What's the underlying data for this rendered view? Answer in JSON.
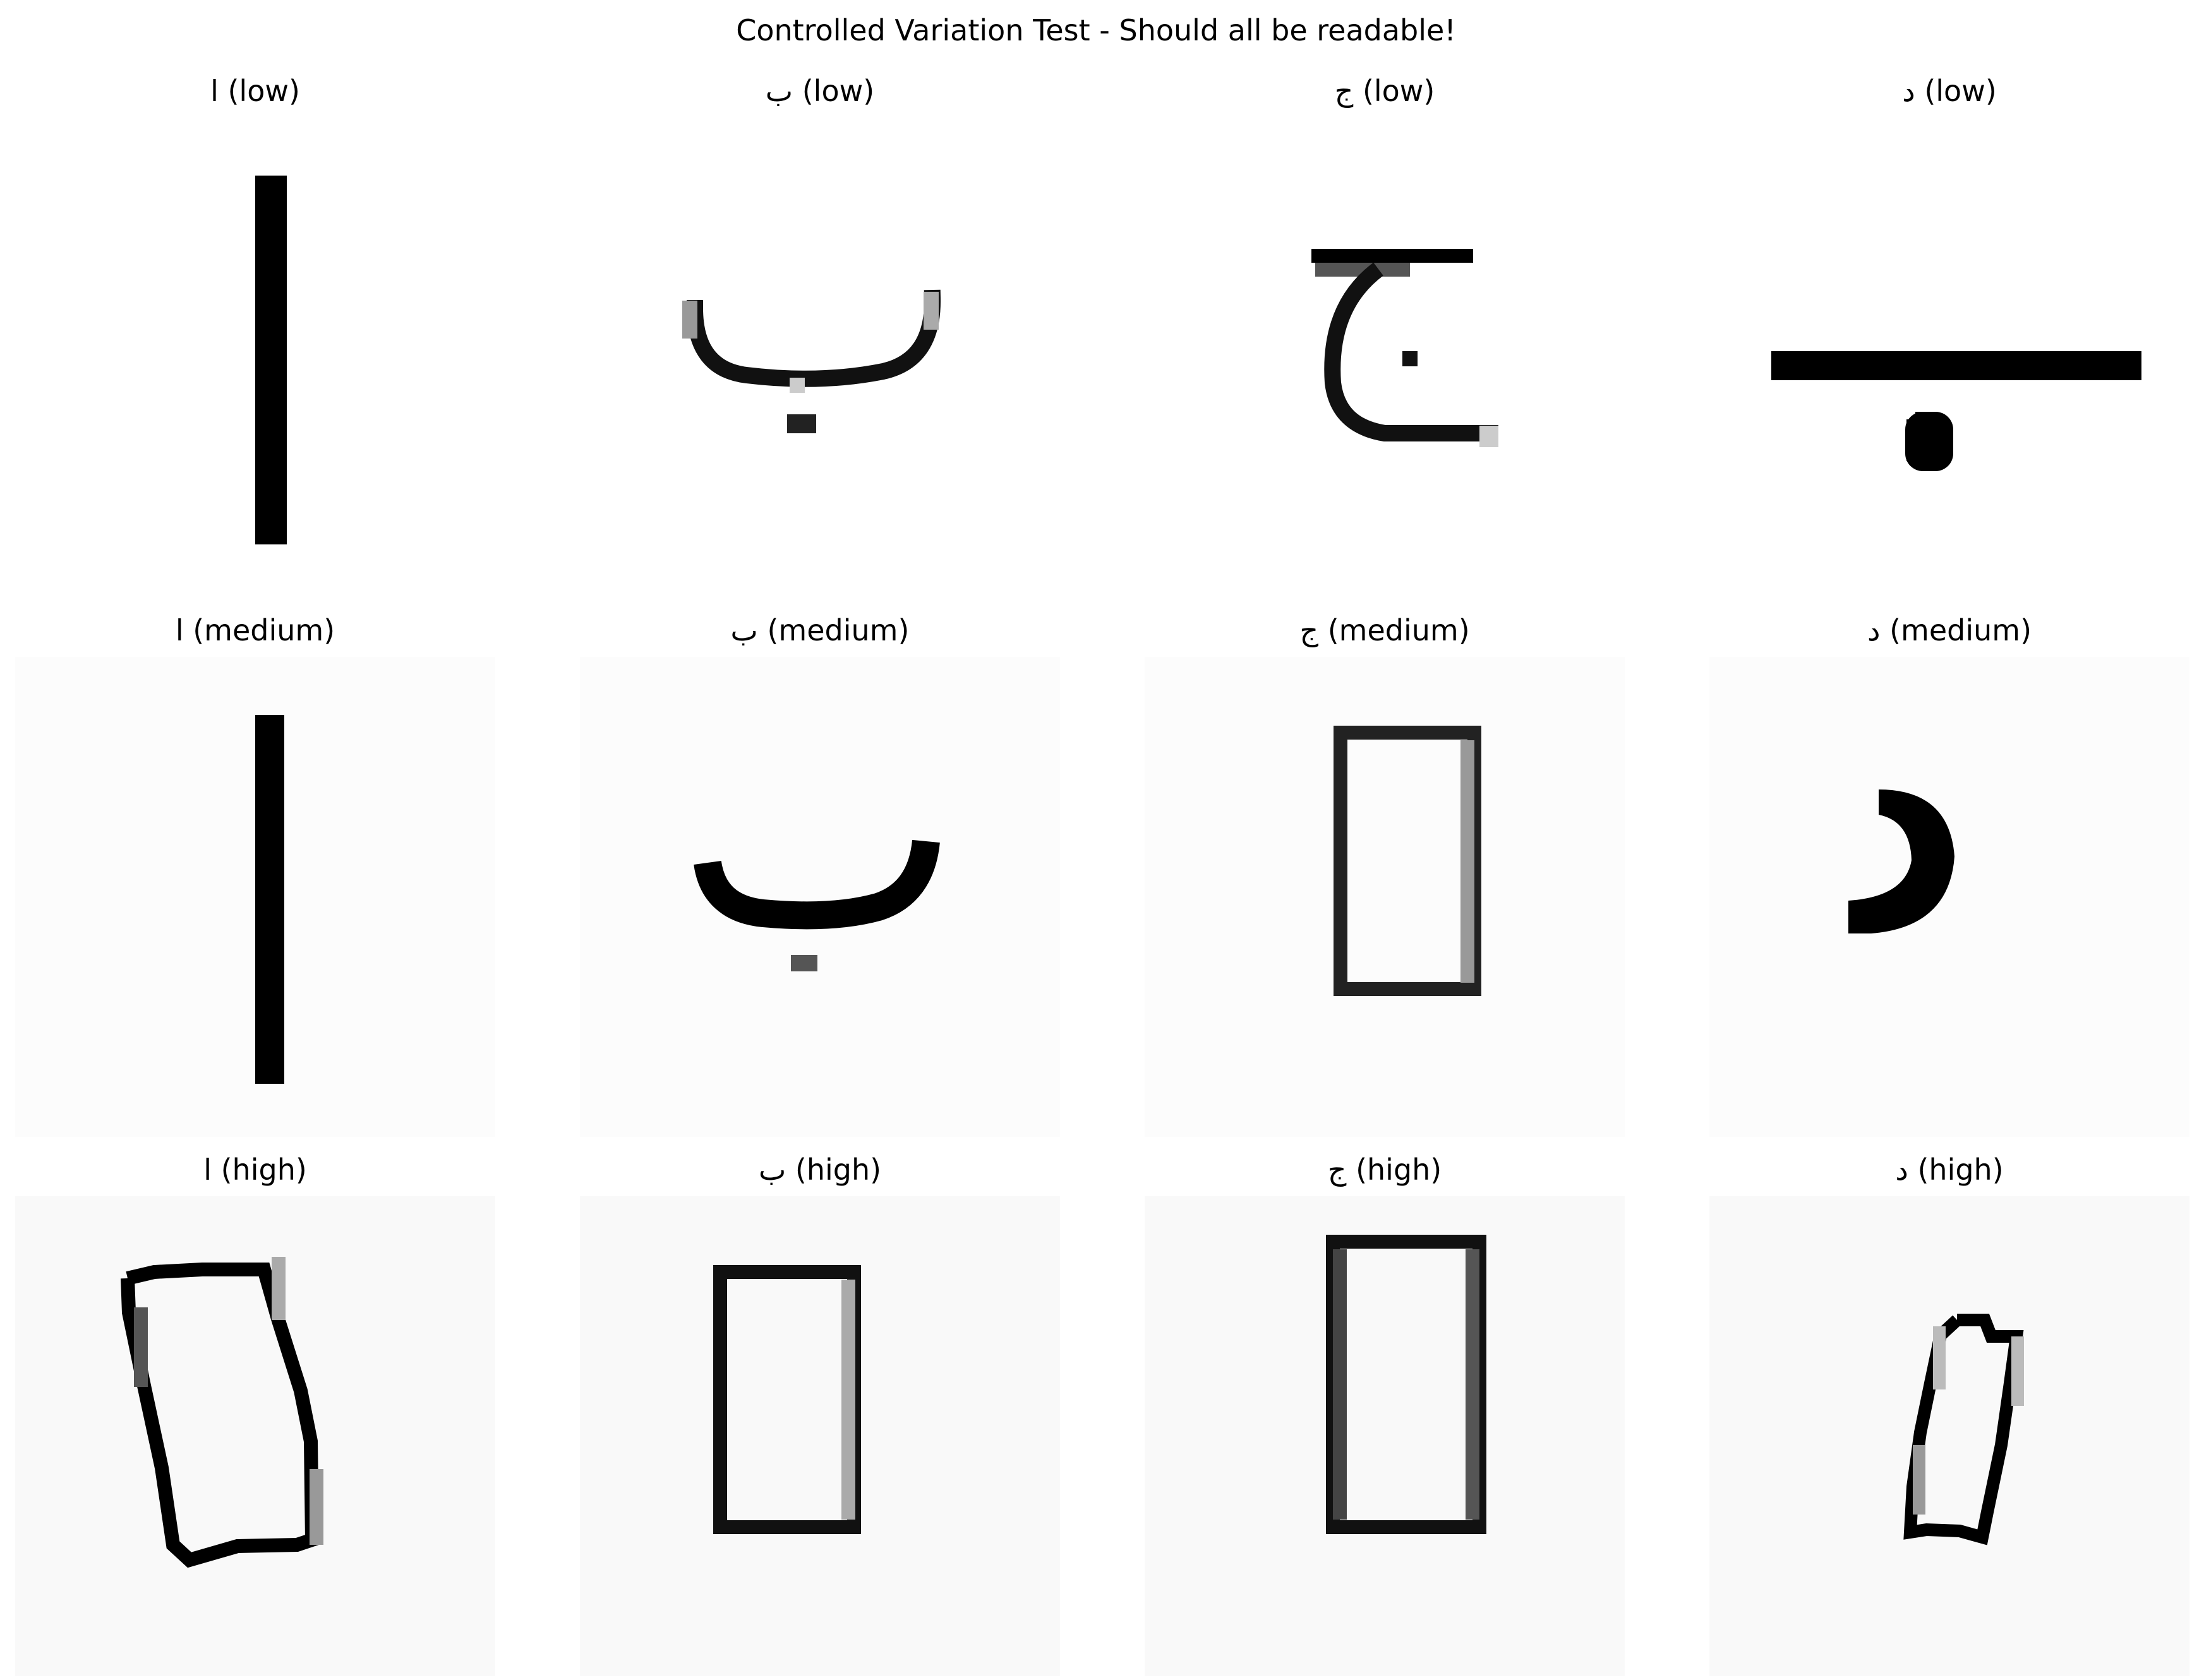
{
  "title": "Controlled Variation Test - Should all be readable!",
  "cells": [
    {
      "glyph": "ا",
      "level": "(low)"
    },
    {
      "glyph": "ب",
      "level": "(low)"
    },
    {
      "glyph": "ج",
      "level": "(low)"
    },
    {
      "glyph": "د",
      "level": "(low)"
    },
    {
      "glyph": "ا",
      "level": "(medium)"
    },
    {
      "glyph": "ب",
      "level": "(medium)"
    },
    {
      "glyph": "ج",
      "level": "(medium)"
    },
    {
      "glyph": "د",
      "level": "(medium)"
    },
    {
      "glyph": "ا",
      "level": "(high)"
    },
    {
      "glyph": "ب",
      "level": "(high)"
    },
    {
      "glyph": "ج",
      "level": "(high)"
    },
    {
      "glyph": "د",
      "level": "(high)"
    }
  ]
}
